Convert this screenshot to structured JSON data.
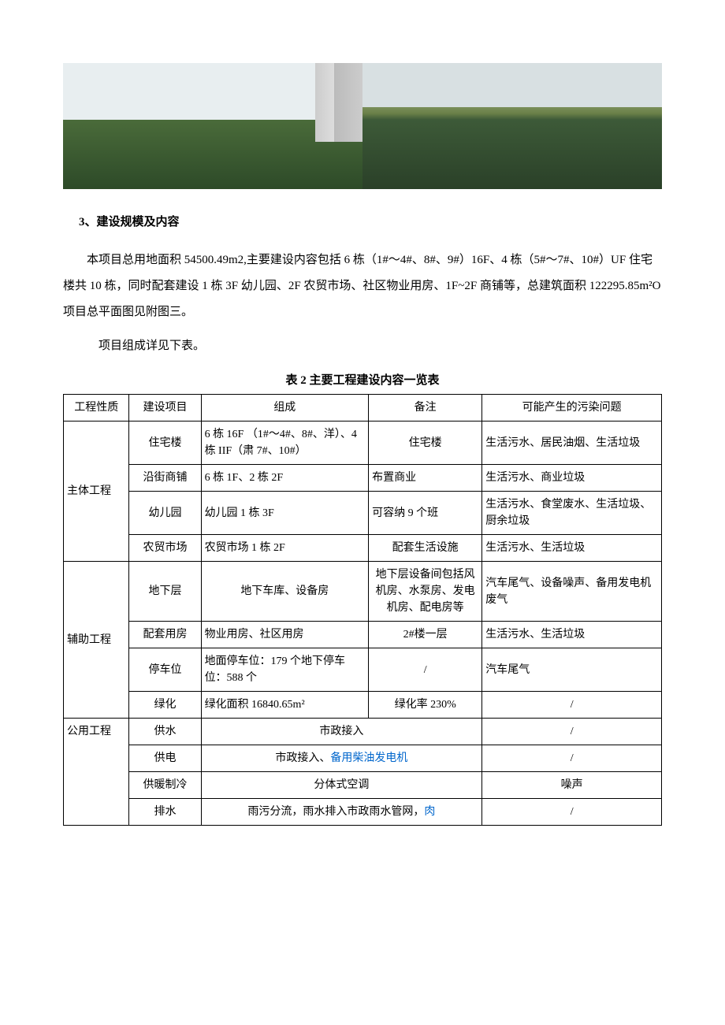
{
  "section": {
    "num": "3",
    "title": "、建设规模及内容"
  },
  "para1": "本项目总用地面积 54500.49m2,主要建设内容包括 6 栋（1#～4#、8#、9#）16F、4 栋（5#～7#、10#）UF 住宅楼共 10 栋，同时配套建设 1 栋 3F 幼儿园、2F 农贸市场、社区物业用房、1F~2F 商铺等，总建筑面积 122295.85m²O 项目总平面图见附图三。",
  "para2": "项目组成详见下表。",
  "table_caption": "表 2 主要工程建设内容一览表",
  "headers": {
    "c1": "工程性质",
    "c2": "建设项目",
    "c3": "组成",
    "c4": "备注",
    "c5": "可能产生的污染问题"
  },
  "groups": [
    {
      "nature": "主体工程",
      "rows": [
        {
          "item": "住宅楼",
          "comp": "6 栋 16F （1#～4#、8#、洋）、4 栋 IIF（肃 7#、10#）",
          "note": "住宅楼",
          "poll": "生活污水、居民油烟、生活垃圾",
          "note_align": "center"
        },
        {
          "item": "沿街商铺",
          "comp": "6 栋 1F、2 栋 2F",
          "note": "布置商业",
          "poll": "生活污水、商业垃圾",
          "note_align": "left"
        },
        {
          "item": "幼儿园",
          "comp": "幼儿园 1 栋 3F",
          "note": "可容纳 9 个班",
          "poll": "生活污水、食堂废水、生活垃圾、厨余垃圾",
          "note_align": "left"
        },
        {
          "item": "农贸市场",
          "comp": "农贸市场 1 栋 2F",
          "note": "配套生活设施",
          "poll": "生活污水、生活垃圾",
          "note_align": "center"
        }
      ]
    },
    {
      "nature": "辅助工程",
      "rows": [
        {
          "item": "地下层",
          "comp": "地下车库、设备房",
          "note": "地下层设备间包括风机房、水泵房、发电机房、配电房等",
          "poll": "汽车尾气、设备噪声、备用发电机废气",
          "note_align": "center",
          "comp_align": "center"
        },
        {
          "item": "配套用房",
          "comp": "物业用房、社区用房",
          "note": "2#楼一层",
          "poll": "生活污水、生活垃圾",
          "note_align": "center"
        },
        {
          "item": "停车位",
          "comp": "地面停车位：179 个地下停车位：588 个",
          "note": "/",
          "poll": "汽车尾气",
          "note_align": "center"
        },
        {
          "item": "绿化",
          "comp": "绿化面积 16840.65m²",
          "note": "绿化率 230%",
          "poll": "/",
          "note_align": "center"
        }
      ]
    }
  ],
  "public": {
    "nature": "公用工程",
    "rows": [
      {
        "item": "供水",
        "merged": "市政接入",
        "poll": "/"
      },
      {
        "item": "供电",
        "merged_parts": {
          "a": "市政接入、",
          "b": "备用柴油发电机"
        },
        "poll": "/"
      },
      {
        "item": "供暖制冷",
        "merged": "分体式空调",
        "poll": "噪声"
      },
      {
        "item": "排水",
        "merged_parts": {
          "a": "雨污分流，雨水排入市政雨水管网，",
          "b": "肉"
        },
        "poll": "/"
      }
    ]
  },
  "photos": {
    "left_colors": {
      "sky": "#e8eef0",
      "field_top": "#4a6b3a",
      "field_bot": "#2d4a28",
      "building": "#cccccc"
    },
    "right_colors": {
      "sky": "#d8e0e2",
      "mid": "#7a8f5a",
      "field": "#2a4028"
    }
  }
}
